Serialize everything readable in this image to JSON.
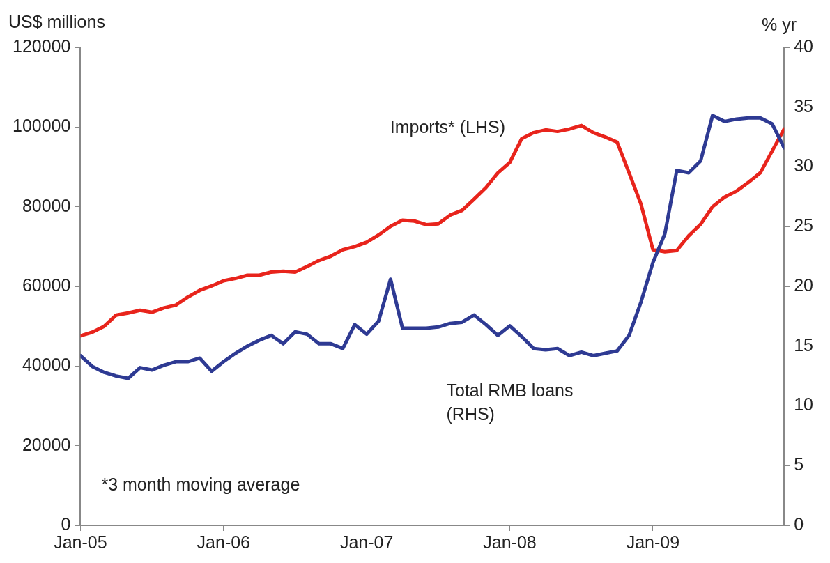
{
  "chart_data": {
    "type": "line",
    "ylabel": "US$ millions",
    "y2label": "% yr",
    "x": [
      "2005-01",
      "2005-02",
      "2005-03",
      "2005-04",
      "2005-05",
      "2005-06",
      "2005-07",
      "2005-08",
      "2005-09",
      "2005-10",
      "2005-11",
      "2005-12",
      "2006-01",
      "2006-02",
      "2006-03",
      "2006-04",
      "2006-05",
      "2006-06",
      "2006-07",
      "2006-08",
      "2006-09",
      "2006-10",
      "2006-11",
      "2006-12",
      "2007-01",
      "2007-02",
      "2007-03",
      "2007-04",
      "2007-05",
      "2007-06",
      "2007-07",
      "2007-08",
      "2007-09",
      "2007-10",
      "2007-11",
      "2007-12",
      "2008-01",
      "2008-02",
      "2008-03",
      "2008-04",
      "2008-05",
      "2008-06",
      "2008-07",
      "2008-08",
      "2008-09",
      "2008-10",
      "2008-11",
      "2008-12",
      "2009-01",
      "2009-02",
      "2009-03",
      "2009-04",
      "2009-05",
      "2009-06",
      "2009-07",
      "2009-08",
      "2009-09",
      "2009-10",
      "2009-11",
      "2009-12"
    ],
    "series": [
      {
        "name": "Imports* (LHS)",
        "color": "#e8241c",
        "values": [
          47600,
          48500,
          50000,
          52800,
          53300,
          54000,
          53500,
          54600,
          55300,
          57300,
          59000,
          60100,
          61400,
          62000,
          62800,
          62800,
          63600,
          63800,
          63600,
          65000,
          66500,
          67600,
          69200,
          70000,
          71100,
          72900,
          75100,
          76600,
          76400,
          75500,
          75700,
          77900,
          79100,
          81900,
          84800,
          88500,
          91100,
          97100,
          98600,
          99300,
          98900,
          99500,
          100400,
          98600,
          97500,
          96200,
          88500,
          80600,
          69200,
          68700,
          69000,
          72700,
          75600,
          80000,
          82400,
          83900,
          86100,
          88500,
          94000,
          99500
        ]
      },
      {
        "name": "Total RMB loans (RHS)",
        "color": "#2e3a93",
        "axis": "y2",
        "values": [
          14.2,
          13.3,
          12.8,
          12.5,
          12.3,
          13.2,
          13.0,
          13.4,
          13.7,
          13.7,
          14.0,
          12.9,
          13.7,
          14.4,
          15.0,
          15.5,
          15.9,
          15.2,
          16.2,
          16.0,
          15.2,
          15.2,
          14.8,
          16.8,
          16.0,
          17.1,
          20.6,
          16.5,
          16.5,
          16.5,
          16.6,
          16.9,
          17.0,
          17.6,
          16.8,
          15.9,
          16.7,
          15.8,
          14.8,
          14.7,
          14.8,
          14.2,
          14.5,
          14.2,
          14.4,
          14.6,
          15.9,
          18.7,
          22.0,
          24.4,
          29.7,
          29.5,
          30.5,
          34.3,
          33.8,
          34.0,
          34.1,
          34.1,
          33.6,
          31.6
        ]
      }
    ],
    "xlim": [
      "2005-01",
      "2009-12"
    ],
    "xticks": [
      {
        "value": "2005-01",
        "label": "Jan-05"
      },
      {
        "value": "2006-01",
        "label": "Jan-06"
      },
      {
        "value": "2007-01",
        "label": "Jan-07"
      },
      {
        "value": "2008-01",
        "label": "Jan-08"
      },
      {
        "value": "2009-01",
        "label": "Jan-09"
      }
    ],
    "ylim": [
      0,
      120000
    ],
    "yticks": [
      0,
      20000,
      40000,
      60000,
      80000,
      100000,
      120000
    ],
    "y2lim": [
      0,
      40
    ],
    "y2ticks": [
      0,
      5,
      10,
      15,
      20,
      25,
      30,
      35,
      40
    ],
    "annotations": [
      "*3 month moving average"
    ],
    "grid": false,
    "legend": false,
    "marker": "none",
    "line_style": "solid"
  }
}
